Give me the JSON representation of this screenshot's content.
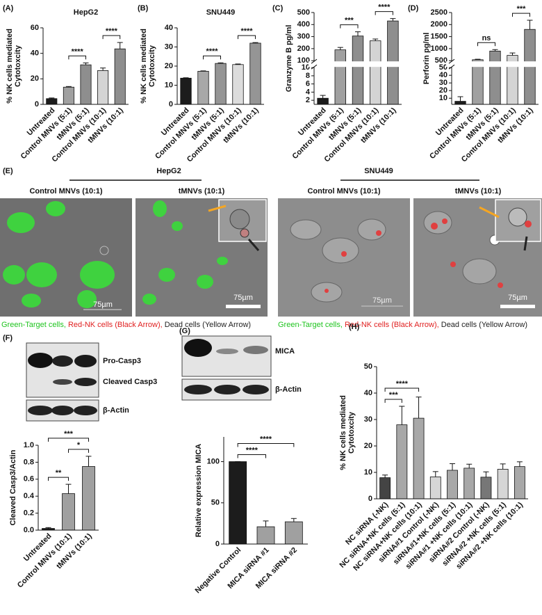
{
  "chart_data": [
    {
      "label": "(A)",
      "type": "bar",
      "title": "HepG2",
      "ylabel": [
        "% NK cells mediated",
        "Cytotoxcity"
      ],
      "categories": [
        "Untreated",
        "Control MNVs (5:1)",
        "tMNVs (5:1)",
        "Control MNVs (10:1)",
        "tMNVs (10:1)"
      ],
      "values": [
        4.5,
        13.5,
        31,
        26.5,
        43.5
      ],
      "errors": [
        0.5,
        0.5,
        1.5,
        2,
        5
      ],
      "colors": [
        "#1c1c1c",
        "#a0a0a0",
        "#8e8e8e",
        "#d4d4d4",
        "#8e8e8e"
      ],
      "ylim": [
        0,
        60
      ],
      "yticks": [
        0,
        20,
        40,
        60
      ],
      "significance": [
        {
          "label": "****",
          "between": [
            "Control MNVs (5:1)",
            "tMNVs (5:1)"
          ]
        },
        {
          "label": "****",
          "between": [
            "Control MNVs (10:1)",
            "tMNVs (10:1)"
          ]
        }
      ]
    },
    {
      "label": "(B)",
      "type": "bar",
      "title": "SNU449",
      "ylabel": [
        "% NK cells mediated",
        "Cytotoxcity"
      ],
      "categories": [
        "Untreated",
        "Control MNVs (5:1)",
        "tMNVs (5:1)",
        "Control MNVs (10:1)",
        "tMNVs (10:1)"
      ],
      "values": [
        13.7,
        17.3,
        21.4,
        20.8,
        32
      ],
      "errors": [
        0.2,
        0.2,
        0.3,
        0.3,
        0.3
      ],
      "colors": [
        "#1c1c1c",
        "#a8a8a8",
        "#959595",
        "#dcdcdc",
        "#959595"
      ],
      "ylim": [
        0,
        40
      ],
      "yticks": [
        0,
        10,
        20,
        30,
        40
      ],
      "significance": [
        {
          "label": "****",
          "between": [
            "Control MNVs (5:1)",
            "tMNVs (5:1)"
          ]
        },
        {
          "label": "****",
          "between": [
            "Control MNVs (10:1)",
            "tMNVs (10:1)"
          ]
        }
      ]
    },
    {
      "label": "(C)",
      "type": "bar",
      "ylabel": [
        "Granzyme B pg/ml"
      ],
      "categories": [
        "Untreated",
        "Control MNVs (5:1)",
        "tMNVs (5:1)",
        "Control MNVs (10:1)",
        "tMNVs (10:1)"
      ],
      "values": [
        2.5,
        190,
        305,
        265,
        430
      ],
      "errors": [
        0.7,
        20,
        35,
        15,
        20
      ],
      "colors": [
        "#1c1c1c",
        "#a0a0a0",
        "#8e8e8e",
        "#d4d4d4",
        "#8e8e8e"
      ],
      "segments": [
        {
          "ylim": [
            1,
            10
          ],
          "yticks": [
            2,
            4,
            6,
            8,
            10
          ]
        },
        {
          "ylim": [
            100,
            500
          ],
          "yticks": [
            100,
            200,
            300,
            400,
            500
          ]
        }
      ],
      "significance": [
        {
          "label": "***",
          "between": [
            "Control MNVs (5:1)",
            "tMNVs (5:1)"
          ]
        },
        {
          "label": "****",
          "between": [
            "Control MNVs (10:1)",
            "tMNVs (10:1)"
          ]
        }
      ]
    },
    {
      "label": "(D)",
      "type": "bar",
      "ylabel": [
        "Perforin pg/ml"
      ],
      "categories": [
        "Untreated",
        "Control MNVs (5:1)",
        "tMNVs (5:1)",
        "Control MNVs (10:1)",
        "tMNVs (10:1)"
      ],
      "values": [
        6,
        540,
        900,
        720,
        1800
      ],
      "errors": [
        6,
        20,
        60,
        100,
        380
      ],
      "colors": [
        "#1c1c1c",
        "#a0a0a0",
        "#8e8e8e",
        "#d4d4d4",
        "#8e8e8e"
      ],
      "segments": [
        {
          "ylim": [
            2,
            50
          ],
          "yticks": [
            10,
            20,
            30,
            40,
            50
          ]
        },
        {
          "ylim": [
            500,
            2500
          ],
          "yticks": [
            500,
            1000,
            1500,
            2000,
            2500
          ]
        }
      ],
      "significance": [
        {
          "label": "ns",
          "between": [
            "Control MNVs (5:1)",
            "tMNVs (5:1)"
          ]
        },
        {
          "label": "***",
          "between": [
            "Control MNVs (10:1)",
            "tMNVs (10:1)"
          ]
        }
      ]
    },
    {
      "label": "(F)",
      "type": "bar",
      "ylabel": [
        "Cleaved Casp3/Actin"
      ],
      "blot_labels": [
        "Pro-Casp3",
        "Cleaved Casp3",
        "β-Actin"
      ],
      "categories": [
        "Untreated",
        "Control MNVs (10:1)",
        "tMNVs (10:1)"
      ],
      "values": [
        0.02,
        0.43,
        0.75
      ],
      "errors": [
        0.01,
        0.11,
        0.12
      ],
      "colors": [
        "#1c1c1c",
        "#a0a0a0",
        "#a0a0a0"
      ],
      "ylim": [
        0,
        1
      ],
      "yticks": [
        {
          "value": 0,
          "label": "0.0"
        },
        0.2,
        0.4,
        0.6,
        0.8,
        {
          "value": 1,
          "label": "1.0"
        }
      ],
      "significance": [
        {
          "label": "**",
          "between": [
            "Untreated",
            "Control MNVs (10:1)"
          ]
        },
        {
          "label": "*",
          "between": [
            "Control MNVs (10:1)",
            "tMNVs (10:1)"
          ]
        },
        {
          "label": "***",
          "between": [
            "Untreated",
            "tMNVs (10:1)"
          ]
        }
      ]
    },
    {
      "label": "(G)",
      "type": "bar",
      "ylabel": [
        "Relative expression MICA"
      ],
      "blot_labels": [
        "MICA",
        "β-Actin"
      ],
      "categories": [
        "Negative Control",
        "MICA siRNA #1",
        "MICA siRNA #2"
      ],
      "values": [
        100,
        21,
        27
      ],
      "errors": [
        0,
        7,
        4
      ],
      "colors": [
        "#1c1c1c",
        "#a0a0a0",
        "#a0a0a0"
      ],
      "ylim": [
        0,
        130
      ],
      "yticks": [
        0,
        50,
        100
      ],
      "significance": [
        {
          "label": "****",
          "between": [
            "Negative Control",
            "MICA siRNA #1"
          ]
        },
        {
          "label": "****",
          "between": [
            "Negative Control",
            "MICA siRNA #2"
          ]
        }
      ]
    },
    {
      "label": "(H)",
      "type": "bar",
      "ylabel": [
        "% NK cells mediated",
        "Cytotoxcity"
      ],
      "categories": [
        "NC siRNA (-NK)",
        "NC siRNA+NK cells (5:1)",
        "NC siRNA+NK cells (10:1)",
        "siRNA#1 Control (-NK)",
        "siRNA#1+NK cells (5:1)",
        "siRNA#1 +NK cells (10:1)",
        "siRNA#2 Control (-NK)",
        "siRNA#2 +NK cells (5:1)",
        "siRNA#2 +NK cells (10:1)"
      ],
      "values": [
        8,
        28,
        30.5,
        8.3,
        10.8,
        11.6,
        8.2,
        11.2,
        12.2
      ],
      "errors": [
        1,
        7,
        8,
        2,
        2.5,
        1.5,
        2,
        2,
        1.8
      ],
      "colors": [
        "#444444",
        "#a8a8a8",
        "#a8a8a8",
        "#d6d6d6",
        "#a8a8a8",
        "#a8a8a8",
        "#777777",
        "#d6d6d6",
        "#a8a8a8"
      ],
      "ylim": [
        0,
        50
      ],
      "yticks": [
        0,
        10,
        20,
        30,
        40,
        50
      ],
      "significance": [
        {
          "label": "***",
          "between": [
            "NC siRNA (-NK)",
            "NC siRNA+NK cells (5:1)"
          ]
        },
        {
          "label": "****",
          "between": [
            "NC siRNA (-NK)",
            "NC siRNA+NK cells (10:1)"
          ]
        }
      ]
    }
  ],
  "image_panel": {
    "label": "(E)",
    "groups": [
      {
        "name": "HepG2",
        "images": [
          {
            "title": "Control MNVs (10:1)",
            "scale": "75µm"
          },
          {
            "title": "tMNVs (10:1)",
            "scale": "75µm"
          }
        ]
      },
      {
        "name": "SNU449",
        "images": [
          {
            "title": "Control MNVs (10:1)",
            "scale": "75µm"
          },
          {
            "title": "tMNVs (10:1)",
            "scale": "75µm"
          }
        ]
      }
    ],
    "legend": [
      {
        "text": "Green-Target cells, ",
        "color": "#1fc41f"
      },
      {
        "text": "Red-NK cells (Black Arrow), ",
        "color": "#e02020"
      },
      {
        "text": "Dead cells (Yellow Arrow)",
        "color": "#222222"
      }
    ]
  }
}
